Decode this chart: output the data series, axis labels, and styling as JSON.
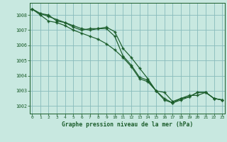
{
  "background_color": "#c8e8e0",
  "grid_color": "#88bbbb",
  "line_color": "#1a5c2a",
  "marker_color": "#1a5c2a",
  "xlabel": "Graphe pression niveau de la mer (hPa)",
  "tick_color": "#1a5c2a",
  "ylim": [
    1001.5,
    1008.8
  ],
  "xlim": [
    -0.3,
    23.3
  ],
  "yticks": [
    1002,
    1003,
    1004,
    1005,
    1006,
    1007,
    1008
  ],
  "xticks": [
    0,
    1,
    2,
    3,
    4,
    5,
    6,
    7,
    8,
    9,
    10,
    11,
    12,
    13,
    14,
    15,
    16,
    17,
    18,
    19,
    20,
    21,
    22,
    23
  ],
  "series": [
    [
      1008.4,
      1008.1,
      1008.0,
      1007.6,
      1007.5,
      1007.2,
      1007.0,
      1007.1,
      1007.1,
      1007.1,
      1006.6,
      1005.3,
      1004.7,
      1003.9,
      1003.7,
      1003.0,
      1002.9,
      1002.3,
      1002.5,
      1002.7,
      1002.7,
      1002.9,
      1002.5,
      1002.4
    ],
    [
      1008.4,
      1008.0,
      1007.6,
      1007.5,
      1007.3,
      1007.0,
      1006.8,
      1006.6,
      1006.4,
      1006.1,
      1005.7,
      1005.2,
      1004.6,
      1003.8,
      1003.6,
      1003.0,
      1002.5,
      1002.2,
      1002.4,
      1002.6,
      1002.9,
      1002.9,
      1002.5,
      1002.4
    ],
    [
      1008.4,
      1008.1,
      1007.9,
      1007.7,
      1007.5,
      1007.3,
      1007.1,
      1007.0,
      1007.1,
      1007.2,
      1006.9,
      1005.8,
      1005.2,
      1004.5,
      1003.8,
      1003.0,
      1002.4,
      1002.2,
      1002.5,
      1002.6,
      1002.9,
      1002.9,
      1002.5,
      1002.4
    ]
  ]
}
